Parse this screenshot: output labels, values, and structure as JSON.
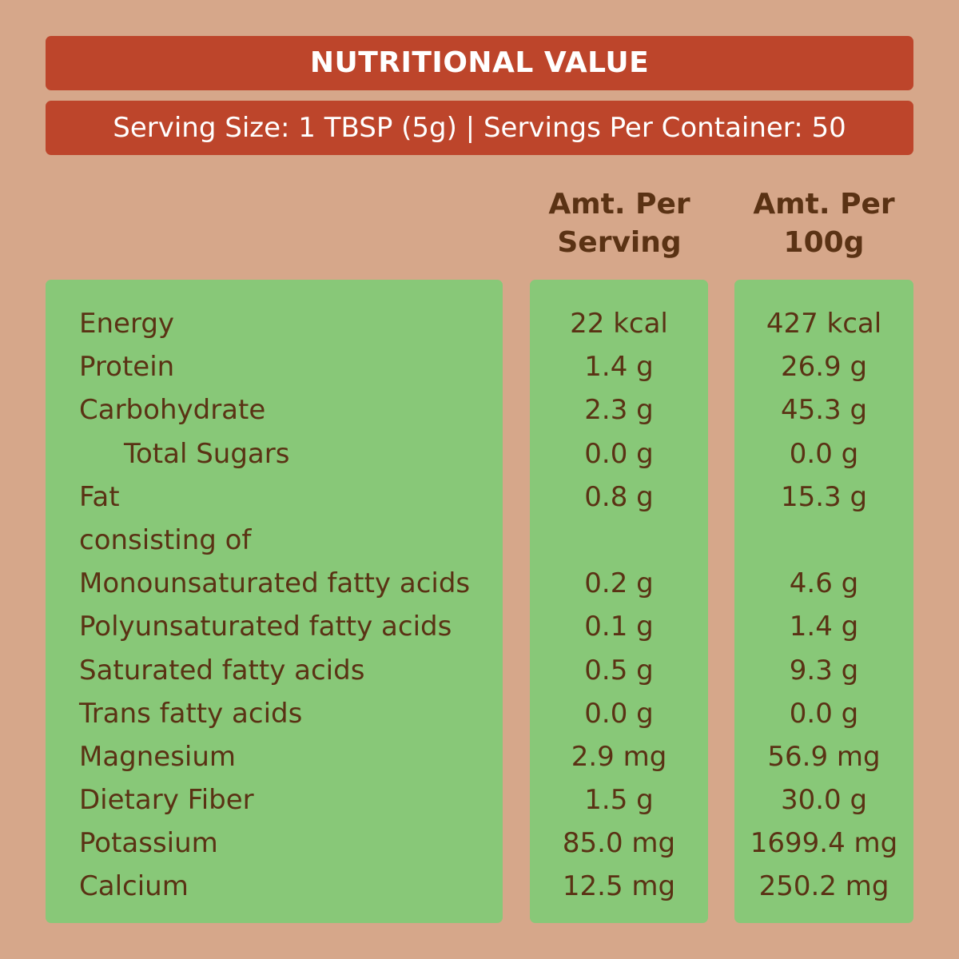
{
  "title": "NUTRITIONAL VALUE",
  "serving_info": "Serving Size:  1 TBSP (5g) | Servings Per Container: 50",
  "columns": {
    "per_serving": "Amt. Per Serving",
    "per_100g": "Amt. Per 100g"
  },
  "rows": [
    {
      "name": "Energy",
      "per_serving": "22 kcal",
      "per_100g": "427 kcal"
    },
    {
      "name": "Protein",
      "per_serving": "1.4 g",
      "per_100g": "26.9 g"
    },
    {
      "name": "Carbohydrate",
      "per_serving": "2.3 g",
      "per_100g": "45.3 g"
    },
    {
      "name": "Total Sugars",
      "per_serving": "0.0 g",
      "per_100g": "0.0 g"
    },
    {
      "name": "Fat",
      "per_serving": "0.8 g",
      "per_100g": "15.3 g"
    },
    {
      "name": "consisting of",
      "per_serving": "",
      "per_100g": ""
    },
    {
      "name": "Monounsaturated fatty acids",
      "per_serving": "0.2 g",
      "per_100g": "4.6 g"
    },
    {
      "name": "Polyunsaturated fatty acids",
      "per_serving": "0.1 g",
      "per_100g": "1.4 g"
    },
    {
      "name": "Saturated fatty acids",
      "per_serving": "0.5 g",
      "per_100g": "9.3 g"
    },
    {
      "name": "Trans fatty acids",
      "per_serving": "0.0 g",
      "per_100g": "0.0 g"
    },
    {
      "name": "Magnesium",
      "per_serving": "2.9 mg",
      "per_100g": "56.9 mg"
    },
    {
      "name": "Dietary Fiber",
      "per_serving": "1.5 g",
      "per_100g": "30.0 g"
    },
    {
      "name": "Potassium",
      "per_serving": "85.0 mg",
      "per_100g": "1699.4 mg"
    },
    {
      "name": "Calcium",
      "per_serving": "12.5 mg",
      "per_100g": "250.2 mg"
    }
  ],
  "colors": {
    "background": "#d6a78a",
    "banner": "#bd452b",
    "panel": "#88c878",
    "text": "#5a3214"
  }
}
